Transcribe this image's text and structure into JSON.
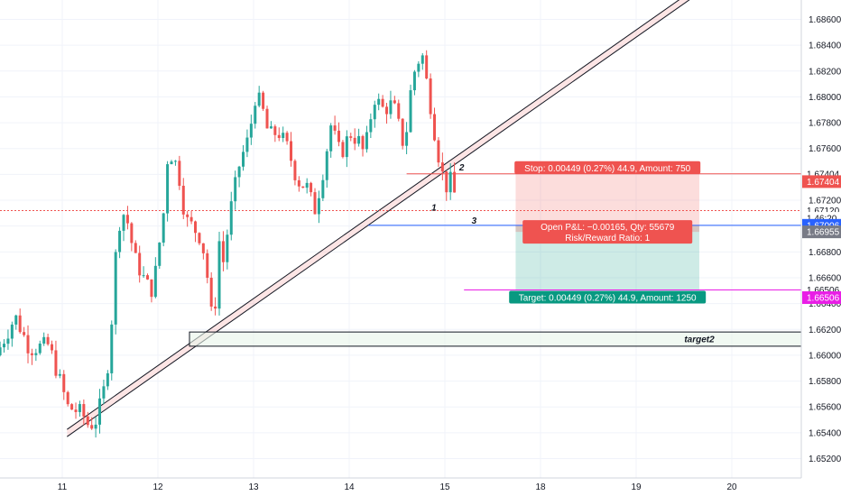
{
  "chart_data": {
    "type": "candlestick",
    "price_range": [
      1.6505,
      1.6875
    ],
    "x_range": [
      0,
      12
    ],
    "grid": true,
    "x_ticks": [
      {
        "label": "11",
        "x": 0
      },
      {
        "label": "12",
        "x": 1
      },
      {
        "label": "13",
        "x": 2
      },
      {
        "label": "14",
        "x": 3
      },
      {
        "label": "15",
        "x": 4
      },
      {
        "label": "18",
        "x": 5
      },
      {
        "label": "19",
        "x": 6
      },
      {
        "label": "20",
        "x": 7
      }
    ],
    "y_ticks": [
      "1.68600",
      "1.68400",
      "1.68200",
      "1.68000",
      "1.67800",
      "1.67600",
      "1.67400",
      "1.67200",
      "1.67000",
      "1.66800",
      "1.66600",
      "1.66400",
      "1.66200",
      "1.66000",
      "1.65800",
      "1.65600",
      "1.65400",
      "1.65200"
    ],
    "colors": {
      "up": "#26a69a",
      "down": "#ef5350",
      "stop": "#ef5350",
      "target": "#089981",
      "entry": "#2962ff",
      "pink": "#e91ee6"
    },
    "candle_path": [
      {
        "x": -0.65,
        "p": 1.66
      },
      {
        "x": -0.45,
        "p": 1.663
      },
      {
        "x": -0.3,
        "p": 1.6605
      },
      {
        "x": -0.1,
        "p": 1.6608
      },
      {
        "x": 0.1,
        "p": 1.656
      },
      {
        "x": 0.25,
        "p": 1.6555
      },
      {
        "x": 0.32,
        "p": 1.6545
      },
      {
        "x": 0.4,
        "p": 1.655
      },
      {
        "x": 0.5,
        "p": 1.658
      },
      {
        "x": 0.55,
        "p": 1.6618
      },
      {
        "x": 0.62,
        "p": 1.67
      },
      {
        "x": 0.7,
        "p": 1.6712
      },
      {
        "x": 0.8,
        "p": 1.6675
      },
      {
        "x": 0.92,
        "p": 1.6655
      },
      {
        "x": 0.99,
        "p": 1.665
      },
      {
        "x": 1.1,
        "p": 1.671
      },
      {
        "x": 1.15,
        "p": 1.676
      },
      {
        "x": 1.25,
        "p": 1.6745
      },
      {
        "x": 1.33,
        "p": 1.6705
      },
      {
        "x": 1.4,
        "p": 1.67
      },
      {
        "x": 1.5,
        "p": 1.669
      },
      {
        "x": 1.58,
        "p": 1.665
      },
      {
        "x": 1.62,
        "p": 1.6614
      },
      {
        "x": 1.68,
        "p": 1.669
      },
      {
        "x": 1.72,
        "p": 1.667
      },
      {
        "x": 1.8,
        "p": 1.6712
      },
      {
        "x": 1.9,
        "p": 1.675
      },
      {
        "x": 2.0,
        "p": 1.677
      },
      {
        "x": 2.05,
        "p": 1.68
      },
      {
        "x": 2.12,
        "p": 1.6795
      },
      {
        "x": 2.2,
        "p": 1.677
      },
      {
        "x": 2.3,
        "p": 1.6773
      },
      {
        "x": 2.4,
        "p": 1.676
      },
      {
        "x": 2.5,
        "p": 1.6735
      },
      {
        "x": 2.6,
        "p": 1.673
      },
      {
        "x": 2.68,
        "p": 1.6712
      },
      {
        "x": 2.75,
        "p": 1.6735
      },
      {
        "x": 2.85,
        "p": 1.6778
      },
      {
        "x": 2.95,
        "p": 1.6755
      },
      {
        "x": 3.05,
        "p": 1.6772
      },
      {
        "x": 3.15,
        "p": 1.6765
      },
      {
        "x": 3.2,
        "p": 1.6755
      },
      {
        "x": 3.3,
        "p": 1.68
      },
      {
        "x": 3.4,
        "p": 1.679
      },
      {
        "x": 3.5,
        "p": 1.6795
      },
      {
        "x": 3.55,
        "p": 1.678
      },
      {
        "x": 3.62,
        "p": 1.676
      },
      {
        "x": 3.7,
        "p": 1.6815
      },
      {
        "x": 3.8,
        "p": 1.6835
      },
      {
        "x": 3.85,
        "p": 1.6812
      },
      {
        "x": 3.9,
        "p": 1.679
      },
      {
        "x": 3.95,
        "p": 1.6765
      },
      {
        "x": 4.0,
        "p": 1.6745
      },
      {
        "x": 4.05,
        "p": 1.673
      },
      {
        "x": 4.1,
        "p": 1.6735
      },
      {
        "x": 4.12,
        "p": 1.6725
      }
    ],
    "stop": {
      "price": 1.67404,
      "label": "Stop: 0.00449 (0.27%) 44.9, Amount: 750",
      "axis_label": "1.67404",
      "level_label": "1.67404"
    },
    "entry": {
      "price": 1.67006,
      "axis_label": "1.67006"
    },
    "current": {
      "price": 1.6712,
      "axis_label": "1.67120",
      "countdown": "46:20",
      "countdown_prefix": "1"
    },
    "close_marker": {
      "price": 1.66955,
      "axis_label": "1.66955"
    },
    "target": {
      "price": 1.66506,
      "label": "Target: 0.00449 (0.27%) 44.9, Amount: 1250",
      "axis_label": "1.66506",
      "level_label": "1.66506"
    },
    "pnl": {
      "line1": "Open P&L: −0.00165, Qty: 55679",
      "line2": "Risk/Reward Ratio: 1"
    },
    "zone": {
      "top": 1.6618,
      "bottom": 1.6607,
      "label": "target2"
    },
    "points": [
      {
        "label": "1",
        "x": 3.86,
        "p": 1.6712
      },
      {
        "label": "2",
        "x": 4.15,
        "p": 1.6743
      },
      {
        "label": "3",
        "x": 4.28,
        "p": 1.6702
      }
    ]
  }
}
